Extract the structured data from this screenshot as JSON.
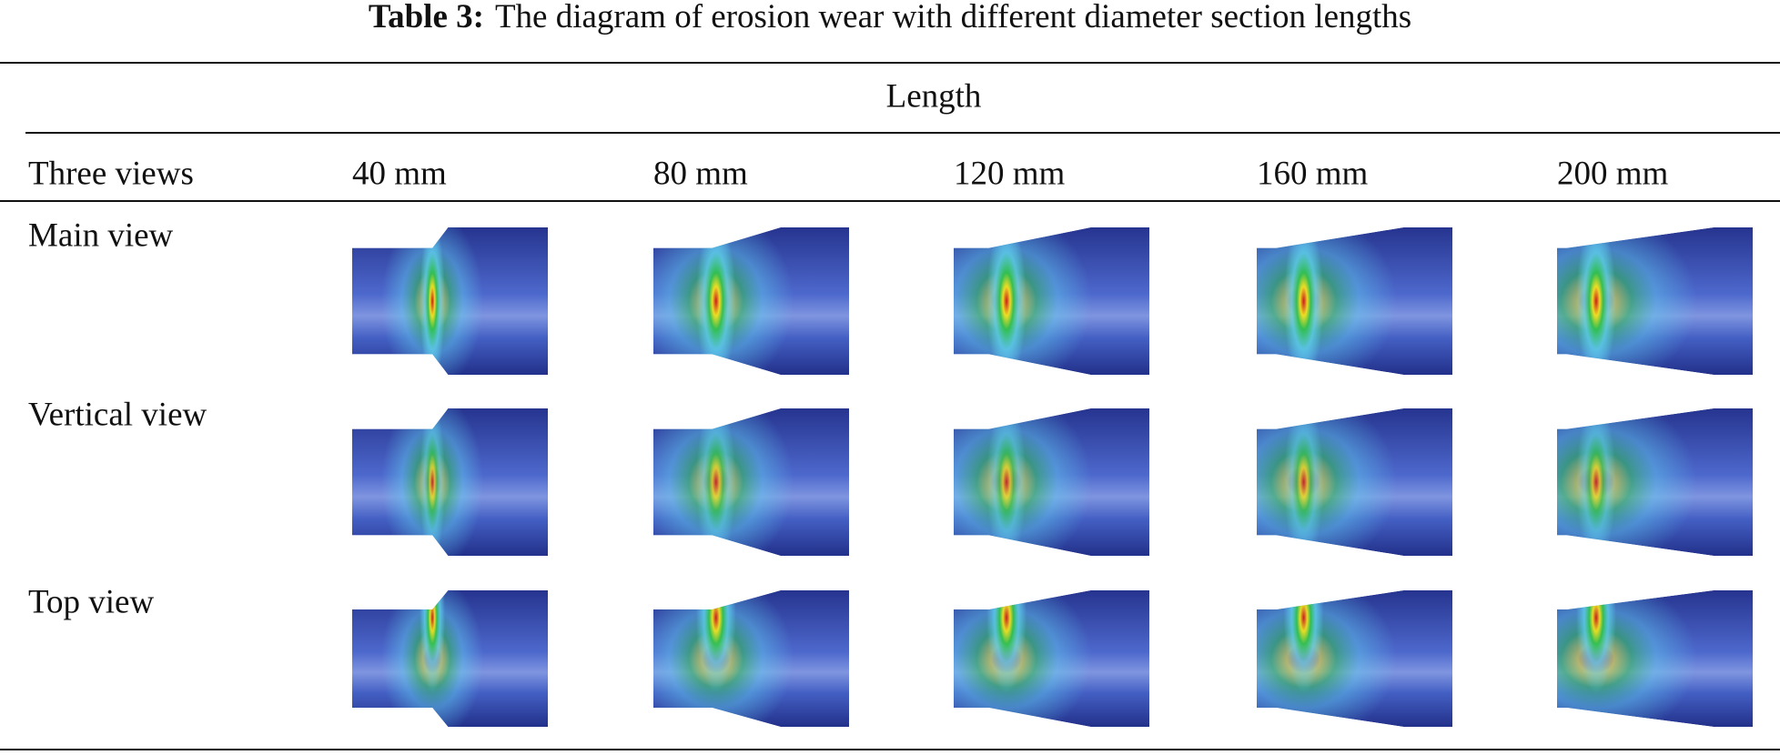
{
  "caption": {
    "label": "Table 3:",
    "text": "The diagram of erosion wear with different diameter section lengths"
  },
  "header": {
    "group": "Length",
    "first": "Three views",
    "columns": [
      "40 mm",
      "80 mm",
      "120 mm",
      "160 mm",
      "200 mm"
    ]
  },
  "rows": [
    "Main view",
    "Vertical view",
    "Top view"
  ]
}
